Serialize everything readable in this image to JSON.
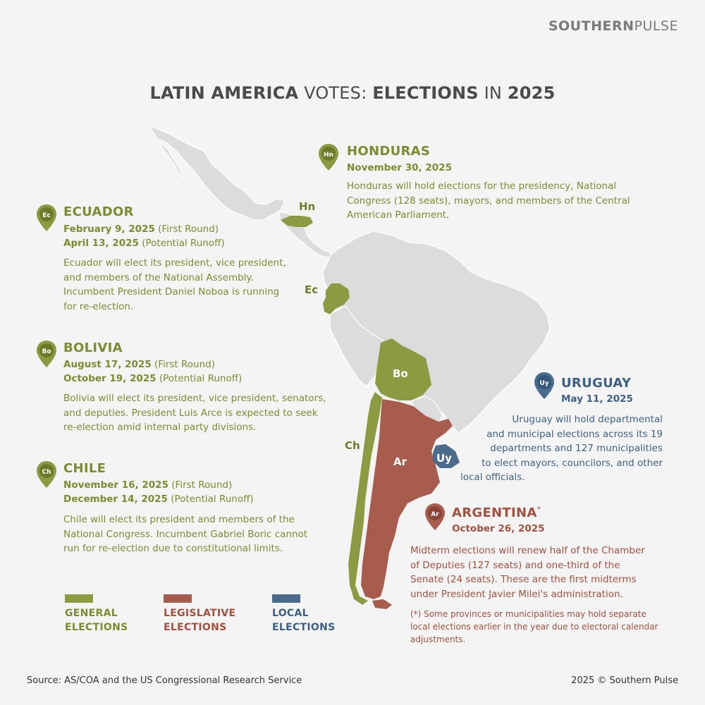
{
  "brand": {
    "part1": "SOUTHERN",
    "part2": "PULSE"
  },
  "title": {
    "w1": "LATIN AMERICA",
    "w2": "VOTES:",
    "w3": "ELECTIONS",
    "w4": "IN",
    "w5": "2025"
  },
  "map_labels": {
    "hn": "Hn",
    "ec": "Ec",
    "bo": "Bo",
    "ch": "Ch",
    "ar": "Ar",
    "uy": "Uy"
  },
  "countries": {
    "honduras": {
      "pin": "Hn",
      "name": "HONDURAS",
      "date1": "November 30, 2025",
      "desc": [
        "Honduras will hold elections for the presidency, National",
        "Congress (128 seats), mayors, and members of the Central",
        "American Parliament."
      ]
    },
    "ecuador": {
      "pin": "Ec",
      "name": "ECUADOR",
      "date1": "February 9, 2025",
      "date1_note": "(First Round)",
      "date2": "April 13, 2025",
      "date2_note": "(Potential Runoff)",
      "desc": [
        "Ecuador will elect its president, vice president,",
        "and members of the National Assembly.",
        "Incumbent President Daniel Noboa is running",
        "for re-election."
      ]
    },
    "bolivia": {
      "pin": "Bo",
      "name": "BOLIVIA",
      "date1": "August 17, 2025",
      "date1_note": "(First Round)",
      "date2": "October 19, 2025",
      "date2_note": "(Potential Runoff)",
      "desc": [
        "Bolivia will elect its president, vice president, senators,",
        "and deputies. President Luis Arce is expected to seek",
        "re-election amid internal party divisions."
      ]
    },
    "chile": {
      "pin": "Ch",
      "name": "CHILE",
      "date1": "November 16, 2025",
      "date1_note": "(First Round)",
      "date2": "December 14, 2025",
      "date2_note": "(Potential Runoff)",
      "desc": [
        "Chile will elect its president and members of the",
        "National Congress. Incumbent Gabriel Boric cannot",
        "run for re-election due to constitutional limits."
      ]
    },
    "uruguay": {
      "pin": "Uy",
      "name": "URUGUAY",
      "date1": "May 11, 2025",
      "desc": [
        "Uruguay will hold departmental",
        "and municipal elections across its 19",
        "departments and 127 municipalities",
        "to elect mayors, councilors, and other",
        "local officials."
      ]
    },
    "argentina": {
      "pin": "Ar",
      "name": "ARGENTINA",
      "asterisk": "*",
      "date1": "October 26, 2025",
      "desc": [
        "Midterm elections will renew half of the Chamber",
        "of Deputies (127 seats) and one-third of the",
        "Senate (24 seats). These are the first midterms",
        "under President Javier Milei's administration."
      ],
      "footnote": [
        "(*) Some provinces or municipalities may hold separate",
        "local elections earlier in the year due to electoral calendar",
        "adjustments."
      ]
    }
  },
  "legend": {
    "general": [
      "GENERAL",
      "ELECTIONS"
    ],
    "legislative": [
      "LEGISLATIVE",
      "ELECTIONS"
    ],
    "local": [
      "LOCAL",
      "ELECTIONS"
    ]
  },
  "colors": {
    "general": "#8c9a41",
    "legislative": "#a85c4e",
    "local": "#4b6b8c",
    "land": "#dcdcdc"
  },
  "footer": {
    "source": "Source: AS/COA and the US Congressional Research Service",
    "copyright": "2025 © Southern Pulse"
  }
}
